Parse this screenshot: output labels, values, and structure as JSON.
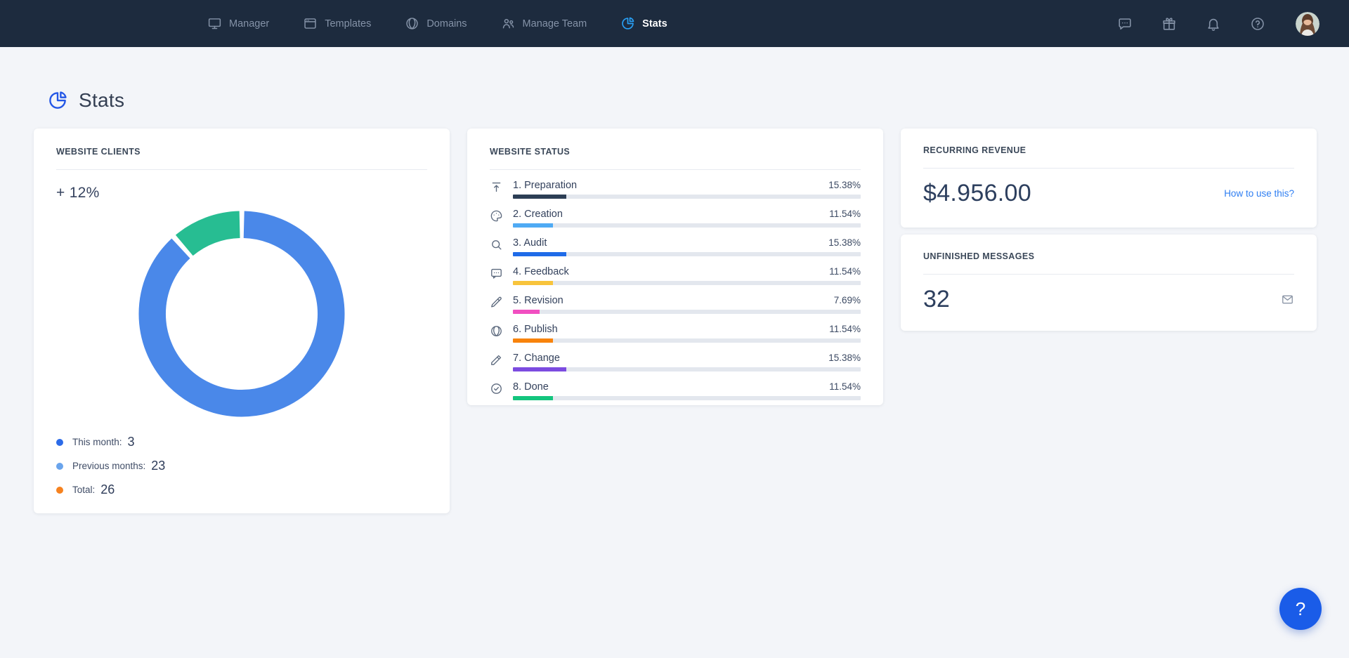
{
  "nav": {
    "items": [
      {
        "label": "Manager",
        "icon": "monitor-icon"
      },
      {
        "label": "Templates",
        "icon": "window-icon"
      },
      {
        "label": "Domains",
        "icon": "globe-icon"
      },
      {
        "label": "Manage Team",
        "icon": "team-icon"
      },
      {
        "label": "Stats",
        "icon": "pie-chart-icon",
        "active": true
      }
    ],
    "right_icons": [
      {
        "icon": "chat-icon"
      },
      {
        "icon": "gift-icon"
      },
      {
        "icon": "bell-icon"
      },
      {
        "icon": "help-circle-icon"
      },
      {
        "icon": "avatar"
      }
    ],
    "colors": {
      "bar_bg": "#1d2b3e",
      "inactive": "#8593a8",
      "active_icon": "#28a0f5"
    }
  },
  "page": {
    "title": "Stats"
  },
  "cards": {
    "clients": {
      "header": "WEBSITE CLIENTS",
      "growth": "+ 12%",
      "legend": [
        {
          "label": "This month:",
          "value": "3",
          "color": "#2c6be8"
        },
        {
          "label": "Previous months:",
          "value": "23",
          "color": "#6aa4ec"
        },
        {
          "label": "Total:",
          "value": "26",
          "color": "#f6821f"
        }
      ]
    },
    "status": {
      "header": "WEBSITE STATUS",
      "rows": [
        {
          "label": "1. Preparation",
          "percent": "15.38%",
          "value": 15.38,
          "color": "#2c3e55",
          "icon": "upload-icon"
        },
        {
          "label": "2. Creation",
          "percent": "11.54%",
          "value": 11.54,
          "color": "#4faaf4",
          "icon": "palette-icon"
        },
        {
          "label": "3. Audit",
          "percent": "15.38%",
          "value": 15.38,
          "color": "#1f6be8",
          "icon": "search-icon"
        },
        {
          "label": "4. Feedback",
          "percent": "11.54%",
          "value": 11.54,
          "color": "#f8c43c",
          "icon": "message-dots-icon"
        },
        {
          "label": "5. Revision",
          "percent": "7.69%",
          "value": 7.69,
          "color": "#f14fc1",
          "icon": "pen-icon"
        },
        {
          "label": "6. Publish",
          "percent": "11.54%",
          "value": 11.54,
          "color": "#f8830c",
          "icon": "globe-icon"
        },
        {
          "label": "7. Change",
          "percent": "15.38%",
          "value": 15.38,
          "color": "#7c4be0",
          "icon": "pencil-icon"
        },
        {
          "label": "8. Done",
          "percent": "11.54%",
          "value": 11.54,
          "color": "#14c57e",
          "icon": "check-circle-icon"
        }
      ]
    },
    "revenue": {
      "header": "RECURRING REVENUE",
      "amount": "$4.956.00",
      "link": "How to use this?"
    },
    "messages": {
      "header": "UNFINISHED MESSAGES",
      "count": "32",
      "icon": "envelope-icon"
    }
  },
  "chart_data": [
    {
      "type": "pie",
      "variant": "donut",
      "title": "Website clients",
      "labels": [
        "Previous months",
        "This month"
      ],
      "values": [
        23,
        3
      ],
      "colors": [
        "#4a88e9",
        "#27bd92"
      ],
      "legend_extra": {
        "total": 26,
        "growth_pct": 12
      },
      "legend_position": "bottom-left"
    },
    {
      "type": "bar",
      "title": "Website status",
      "categories": [
        "1. Preparation",
        "2. Creation",
        "3. Audit",
        "4. Feedback",
        "5. Revision",
        "6. Publish",
        "7. Change",
        "8. Done"
      ],
      "values": [
        15.38,
        11.54,
        15.38,
        11.54,
        7.69,
        11.54,
        15.38,
        11.54
      ],
      "unit": "%",
      "xlim": [
        0,
        100
      ],
      "orientation": "horizontal"
    }
  ],
  "help_button": {
    "label": "?"
  }
}
